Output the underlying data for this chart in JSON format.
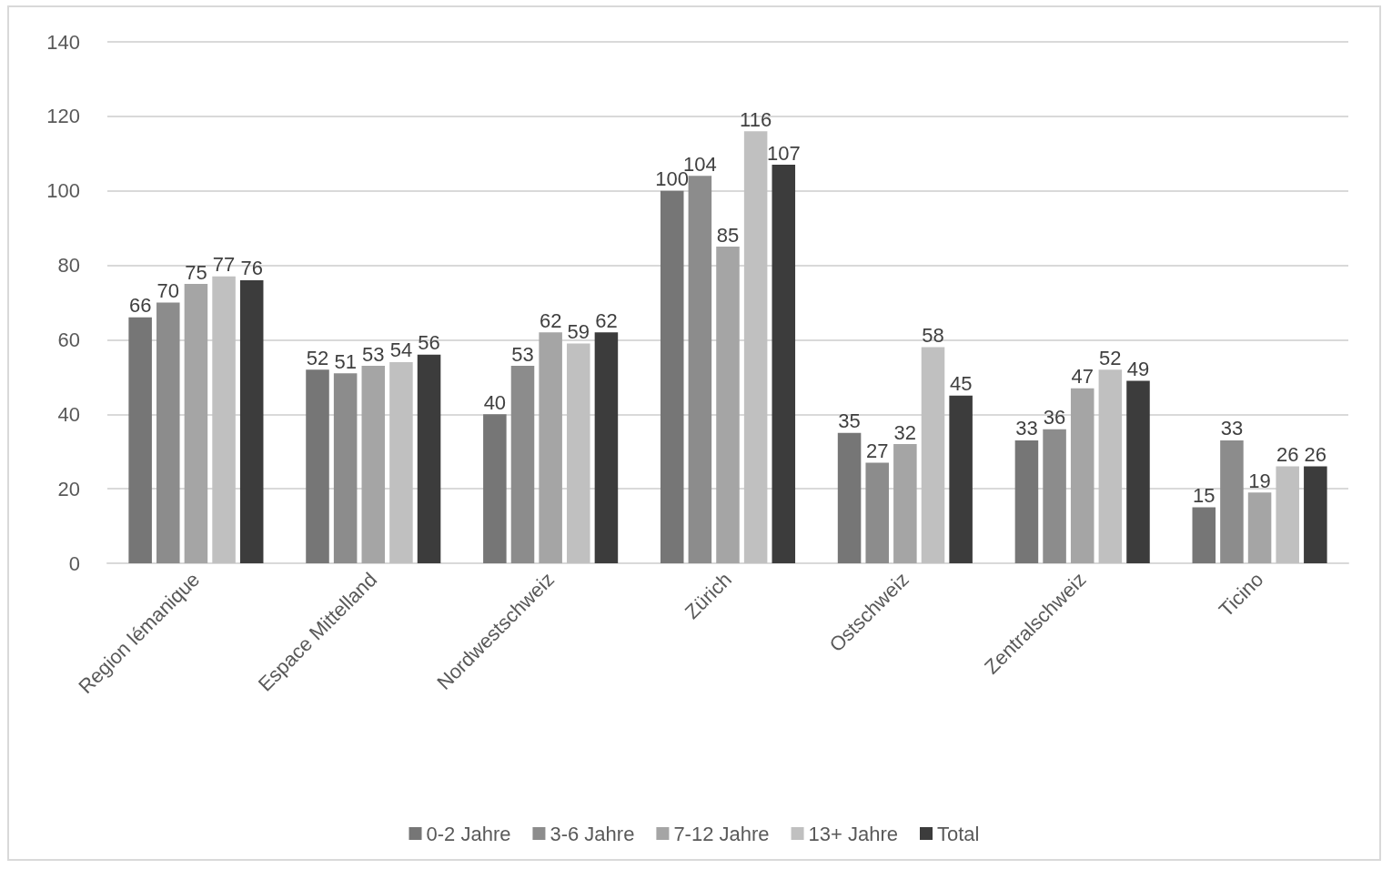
{
  "chart_data": {
    "type": "bar",
    "categories": [
      "Region lémanique",
      "Espace Mittelland",
      "Nordwestschweiz",
      "Zürich",
      "Ostschweiz",
      "Zentralschweiz",
      "Ticino"
    ],
    "series": [
      {
        "name": "0-2 Jahre",
        "color": "#767676",
        "values": [
          66,
          52,
          40,
          100,
          35,
          33,
          15
        ]
      },
      {
        "name": "3-6 Jahre",
        "color": "#8c8c8c",
        "values": [
          70,
          51,
          53,
          104,
          27,
          36,
          33
        ]
      },
      {
        "name": "7-12 Jahre",
        "color": "#a5a5a5",
        "values": [
          75,
          53,
          62,
          85,
          32,
          47,
          19
        ]
      },
      {
        "name": "13+ Jahre",
        "color": "#c0c0c0",
        "values": [
          77,
          54,
          59,
          116,
          58,
          52,
          26
        ]
      },
      {
        "name": "Total",
        "color": "#3c3c3c",
        "values": [
          76,
          56,
          62,
          107,
          45,
          49,
          26
        ]
      }
    ],
    "ylim": [
      0,
      140
    ],
    "yticks": [
      0,
      20,
      40,
      60,
      80,
      100,
      120,
      140
    ],
    "grid": "y",
    "legend": "bottom",
    "data_labels": true
  }
}
